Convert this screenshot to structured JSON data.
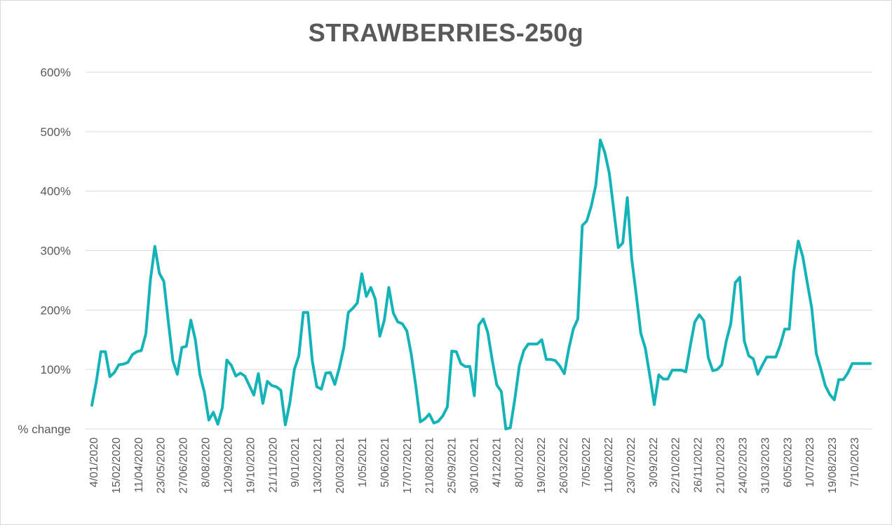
{
  "chart_data": {
    "type": "line",
    "title": "STRAWBERRIES-250g",
    "ylabel": "",
    "xlabel": "",
    "ylim": [
      0,
      600
    ],
    "y_ticks": [
      {
        "value": 100,
        "label": "100%"
      },
      {
        "value": 200,
        "label": "200%"
      },
      {
        "value": 300,
        "label": "300%"
      },
      {
        "value": 400,
        "label": "400%"
      },
      {
        "value": 500,
        "label": "500%"
      },
      {
        "value": 600,
        "label": "600%"
      }
    ],
    "y_zero_label": "% change",
    "grid": true,
    "legend": "none",
    "line_color": "#14b3b8",
    "x_tick_labels": [
      "4/01/2020",
      "15/02/2020",
      "11/04/2020",
      "23/05/2020",
      "27/06/2020",
      "8/08/2020",
      "12/09/2020",
      "19/10/2020",
      "21/11/2020",
      "9/01/2021",
      "13/02/2021",
      "20/03/2021",
      "1/05/2021",
      "5/06/2021",
      "17/07/2021",
      "21/08/2021",
      "25/09/2021",
      "30/10/2021",
      "4/12/2021",
      "8/01/2022",
      "19/02/2022",
      "26/03/2022",
      "7/05/2022",
      "11/06/2022",
      "23/07/2022",
      "3/09/2022",
      "22/10/2022",
      "26/11/2022",
      "21/01/2023",
      "24/02/2023",
      "31/03/2023",
      "6/05/2023",
      "1/07/2023",
      "19/08/2023",
      "7/10/2023"
    ],
    "series": [
      {
        "values": [
          40,
          80,
          130,
          130,
          88,
          95,
          108,
          109,
          112,
          125,
          130,
          132,
          160,
          250,
          307,
          262,
          248,
          180,
          115,
          92,
          137,
          139,
          183,
          150,
          92,
          62,
          15,
          28,
          8,
          36,
          116,
          107,
          89,
          94,
          89,
          73,
          57,
          93,
          43,
          80,
          73,
          71,
          65,
          7,
          44,
          100,
          123,
          196,
          196,
          114,
          71,
          67,
          94,
          95,
          75,
          103,
          137,
          196,
          203,
          212,
          261,
          223,
          238,
          218,
          156,
          183,
          238,
          195,
          180,
          177,
          165,
          125,
          72,
          12,
          17,
          25,
          10,
          13,
          22,
          37,
          131,
          130,
          110,
          105,
          105,
          56,
          175,
          185,
          162,
          115,
          74,
          63,
          0,
          2,
          50,
          106,
          132,
          143,
          143,
          143,
          150,
          117,
          117,
          115,
          106,
          93,
          135,
          168,
          185,
          342,
          350,
          375,
          410,
          486,
          465,
          430,
          368,
          305,
          313,
          389,
          285,
          225,
          161,
          136,
          90,
          41,
          91,
          84,
          84,
          99,
          99,
          99,
          96,
          140,
          180,
          192,
          182,
          120,
          98,
          100,
          108,
          148,
          177,
          246,
          255,
          148,
          123,
          118,
          92,
          107,
          121,
          121,
          121,
          141,
          168,
          168,
          265,
          316,
          290,
          246,
          203,
          127,
          101,
          73,
          58,
          49,
          83,
          83,
          94,
          110,
          110,
          110,
          110,
          110
        ]
      }
    ]
  }
}
